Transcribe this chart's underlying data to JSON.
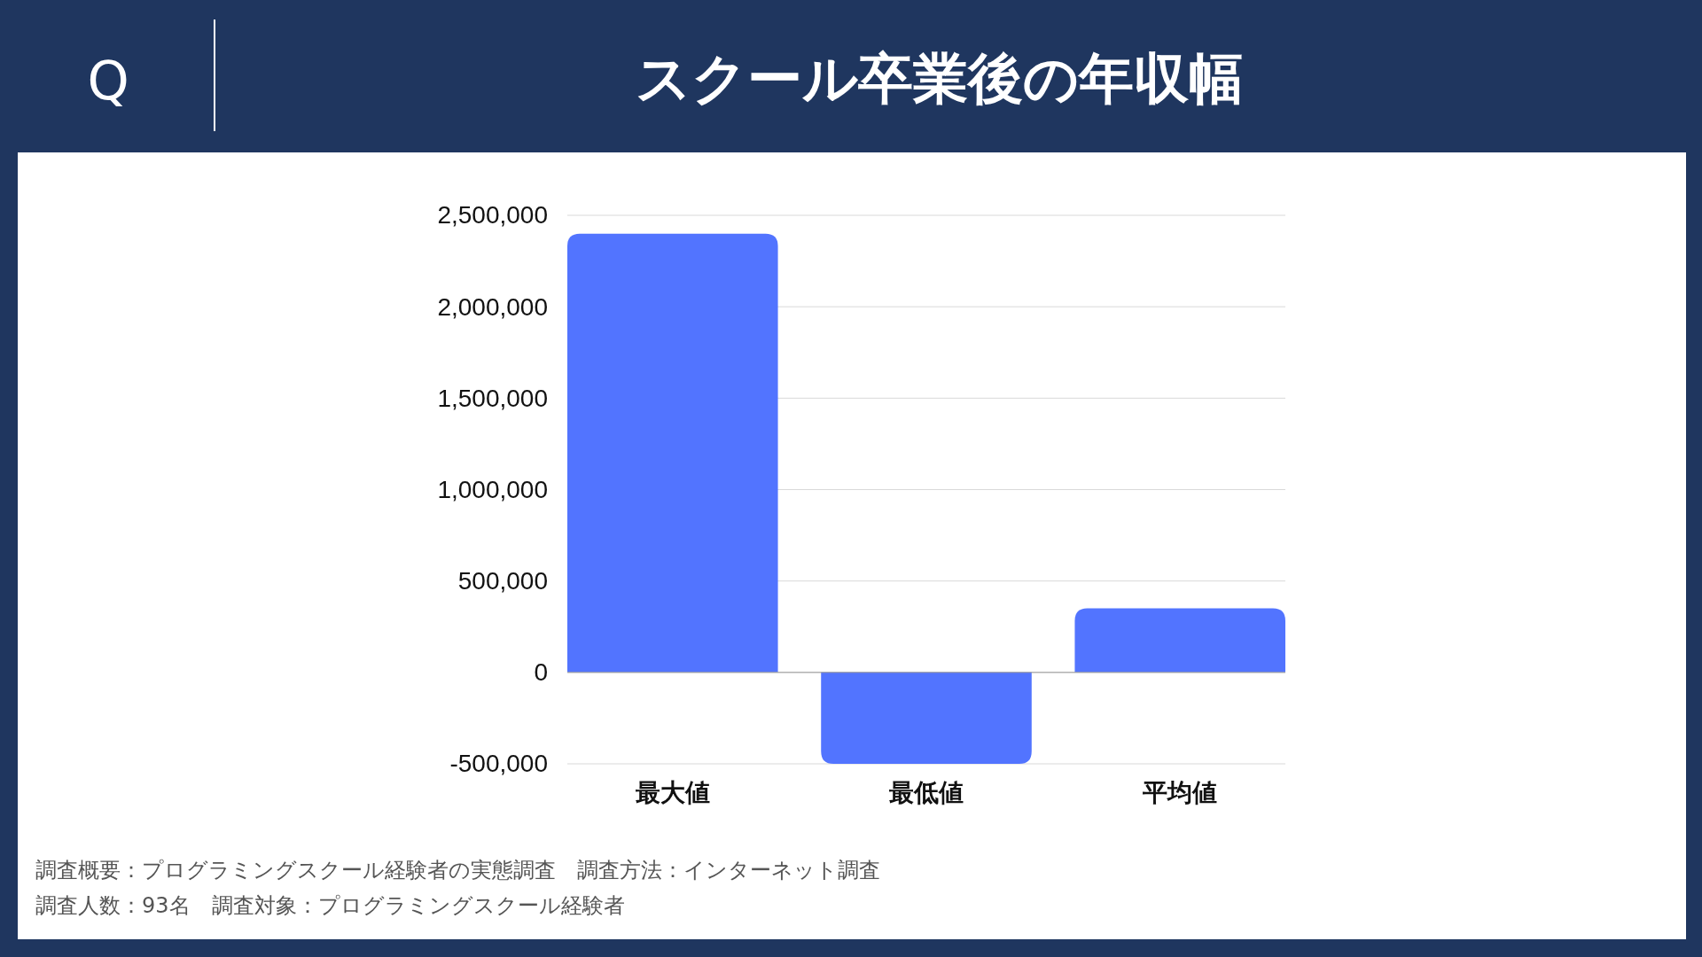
{
  "chart_data": {
    "type": "bar",
    "title": "スクール卒業後の年収幅",
    "categories": [
      "最大値",
      "最低値",
      "平均値"
    ],
    "values": [
      2400000,
      -500000,
      350000
    ],
    "color": "#5274ff",
    "ylim": [
      -500000,
      2500000
    ],
    "yticks": [
      {
        "value": -500000,
        "label": "-500,000"
      },
      0,
      {
        "value": 500000,
        "label": "500,000"
      },
      {
        "value": 1000000,
        "label": "1,000,000"
      },
      {
        "value": 1500000,
        "label": "1,500,000"
      },
      {
        "value": 2000000,
        "label": "2,000,000"
      },
      {
        "value": 2500000,
        "label": "2,500,000"
      }
    ],
    "grid": "y",
    "annotations": [
      "Q",
      "調査概要：プログラミングスクール経験者の実態調査　調査方法：インターネット調査",
      "調査人数：93名　調査対象：プログラミングスクール経験者"
    ]
  }
}
